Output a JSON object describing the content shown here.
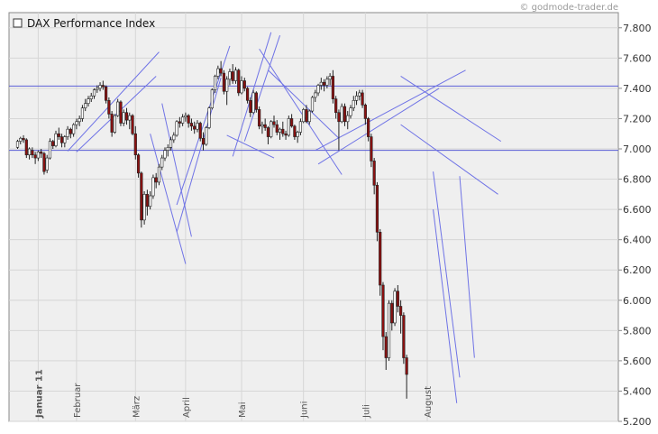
{
  "chart_data": {
    "type": "candlestick",
    "title": "DAX Performance Index",
    "watermark": "© godmode-trader.de",
    "ylim": [
      5200,
      7900
    ],
    "y_ticks": [
      {
        "value": 5200,
        "label": "5.200"
      },
      {
        "value": 5400,
        "label": "5.400"
      },
      {
        "value": 5600,
        "label": "5.600"
      },
      {
        "value": 5800,
        "label": "5.800"
      },
      {
        "value": 6000,
        "label": "6.000"
      },
      {
        "value": 6200,
        "label": "6.200"
      },
      {
        "value": 6400,
        "label": "6.400"
      },
      {
        "value": 6600,
        "label": "6.600"
      },
      {
        "value": 6800,
        "label": "6.800"
      },
      {
        "value": 7000,
        "label": "7.000"
      },
      {
        "value": 7200,
        "label": "7.200"
      },
      {
        "value": 7400,
        "label": "7.400"
      },
      {
        "value": 7600,
        "label": "7.600"
      },
      {
        "value": 7800,
        "label": "7.800"
      }
    ],
    "month_labels": [
      {
        "label": "Januar 11",
        "index": 7,
        "bold": true
      },
      {
        "label": "Februar",
        "index": 20,
        "bold": false
      },
      {
        "label": "März",
        "index": 40,
        "bold": false
      },
      {
        "label": "April",
        "index": 57,
        "bold": false
      },
      {
        "label": "Mai",
        "index": 76,
        "bold": false
      },
      {
        "label": "Juni",
        "index": 97,
        "bold": false
      },
      {
        "label": "Juli",
        "index": 118,
        "bold": false
      },
      {
        "label": "August",
        "index": 139,
        "bold": false
      }
    ],
    "horizontal_levels": [
      7415,
      6990
    ],
    "trend_lines": [
      [
        [
          17,
          6985
        ],
        [
          48,
          7640
        ]
      ],
      [
        [
          20,
          6980
        ],
        [
          47,
          7480
        ]
      ],
      [
        [
          49,
          7300
        ],
        [
          59,
          6420
        ]
      ],
      [
        [
          45,
          7100
        ],
        [
          57,
          6240
        ]
      ],
      [
        [
          54,
          6450
        ],
        [
          69,
          7470
        ]
      ],
      [
        [
          54,
          6630
        ],
        [
          72,
          7680
        ]
      ],
      [
        [
          71,
          7090
        ],
        [
          87,
          6940
        ]
      ],
      [
        [
          73,
          6950
        ],
        [
          86,
          7770
        ]
      ],
      [
        [
          77,
          7050
        ],
        [
          89,
          7750
        ]
      ],
      [
        [
          85,
          7520
        ],
        [
          109,
          7070
        ]
      ],
      [
        [
          82,
          7660
        ],
        [
          110,
          6830
        ]
      ],
      [
        [
          102,
          6900
        ],
        [
          143,
          7400
        ]
      ],
      [
        [
          101,
          6990
        ],
        [
          152,
          7520
        ]
      ],
      [
        [
          130,
          7480
        ],
        [
          164,
          7050
        ]
      ],
      [
        [
          130,
          7160
        ],
        [
          163,
          6700
        ]
      ],
      [
        [
          141,
          6850
        ],
        [
          150,
          5490
        ]
      ],
      [
        [
          141,
          6600
        ],
        [
          149,
          5320
        ]
      ],
      [
        [
          150,
          6820
        ],
        [
          155,
          5620
        ]
      ]
    ],
    "candles": [
      [
        7010,
        7060,
        7000,
        7050
      ],
      [
        7050,
        7080,
        7030,
        7070
      ],
      [
        7070,
        7090,
        7040,
        7060
      ],
      [
        7060,
        7070,
        6940,
        6960
      ],
      [
        6960,
        7010,
        6930,
        7000
      ],
      [
        6990,
        7010,
        6940,
        6960
      ],
      [
        6960,
        6980,
        6900,
        6940
      ],
      [
        6940,
        6990,
        6920,
        6980
      ],
      [
        6980,
        7000,
        6940,
        6970
      ],
      [
        6970,
        6980,
        6830,
        6850
      ],
      [
        6860,
        6960,
        6840,
        6940
      ],
      [
        6940,
        7070,
        6930,
        7050
      ],
      [
        7050,
        7060,
        7000,
        7020
      ],
      [
        7020,
        7120,
        7010,
        7100
      ],
      [
        7100,
        7140,
        7060,
        7080
      ],
      [
        7080,
        7100,
        7010,
        7040
      ],
      [
        7040,
        7090,
        7010,
        7080
      ],
      [
        7080,
        7150,
        7060,
        7130
      ],
      [
        7130,
        7140,
        7070,
        7100
      ],
      [
        7100,
        7170,
        7080,
        7160
      ],
      [
        7160,
        7200,
        7130,
        7180
      ],
      [
        7180,
        7220,
        7150,
        7200
      ],
      [
        7200,
        7290,
        7180,
        7270
      ],
      [
        7270,
        7330,
        7250,
        7300
      ],
      [
        7300,
        7350,
        7280,
        7330
      ],
      [
        7330,
        7370,
        7310,
        7350
      ],
      [
        7350,
        7400,
        7330,
        7390
      ],
      [
        7390,
        7420,
        7370,
        7400
      ],
      [
        7400,
        7440,
        7380,
        7420
      ],
      [
        7420,
        7450,
        7390,
        7410
      ],
      [
        7410,
        7420,
        7300,
        7320
      ],
      [
        7320,
        7340,
        7200,
        7230
      ],
      [
        7230,
        7250,
        7080,
        7110
      ],
      [
        7110,
        7230,
        7100,
        7220
      ],
      [
        7220,
        7330,
        7210,
        7310
      ],
      [
        7310,
        7320,
        7150,
        7170
      ],
      [
        7170,
        7260,
        7150,
        7240
      ],
      [
        7240,
        7270,
        7160,
        7190
      ],
      [
        7190,
        7240,
        7130,
        7220
      ],
      [
        7220,
        7230,
        7090,
        7100
      ],
      [
        7100,
        7150,
        6930,
        6960
      ],
      [
        6960,
        6970,
        6810,
        6840
      ],
      [
        6840,
        6850,
        6480,
        6530
      ],
      [
        6530,
        6720,
        6500,
        6700
      ],
      [
        6700,
        6730,
        6560,
        6620
      ],
      [
        6620,
        6720,
        6600,
        6690
      ],
      [
        6690,
        6830,
        6670,
        6810
      ],
      [
        6810,
        6840,
        6740,
        6780
      ],
      [
        6780,
        6900,
        6760,
        6880
      ],
      [
        6880,
        6960,
        6860,
        6940
      ],
      [
        6940,
        7010,
        6920,
        6990
      ],
      [
        6990,
        7030,
        6950,
        7010
      ],
      [
        7010,
        7080,
        6990,
        7060
      ],
      [
        7060,
        7110,
        7040,
        7090
      ],
      [
        7090,
        7190,
        7080,
        7180
      ],
      [
        7180,
        7210,
        7140,
        7170
      ],
      [
        7170,
        7230,
        7150,
        7210
      ],
      [
        7210,
        7240,
        7180,
        7220
      ],
      [
        7220,
        7230,
        7140,
        7170
      ],
      [
        7170,
        7200,
        7120,
        7150
      ],
      [
        7150,
        7180,
        7100,
        7130
      ],
      [
        7130,
        7190,
        7110,
        7170
      ],
      [
        7170,
        7180,
        7050,
        7070
      ],
      [
        7070,
        7110,
        6990,
        7030
      ],
      [
        7030,
        7150,
        7020,
        7140
      ],
      [
        7140,
        7280,
        7130,
        7270
      ],
      [
        7270,
        7400,
        7260,
        7390
      ],
      [
        7390,
        7490,
        7370,
        7480
      ],
      [
        7480,
        7550,
        7460,
        7530
      ],
      [
        7530,
        7580,
        7480,
        7500
      ],
      [
        7500,
        7520,
        7360,
        7380
      ],
      [
        7380,
        7480,
        7290,
        7460
      ],
      [
        7460,
        7530,
        7420,
        7510
      ],
      [
        7510,
        7560,
        7430,
        7450
      ],
      [
        7450,
        7540,
        7430,
        7520
      ],
      [
        7520,
        7530,
        7350,
        7370
      ],
      [
        7370,
        7480,
        7360,
        7450
      ],
      [
        7450,
        7470,
        7380,
        7400
      ],
      [
        7400,
        7410,
        7300,
        7320
      ],
      [
        7320,
        7340,
        7210,
        7240
      ],
      [
        7240,
        7390,
        7230,
        7370
      ],
      [
        7370,
        7380,
        7240,
        7260
      ],
      [
        7260,
        7280,
        7130,
        7150
      ],
      [
        7150,
        7180,
        7100,
        7160
      ],
      [
        7160,
        7200,
        7120,
        7140
      ],
      [
        7140,
        7150,
        7030,
        7080
      ],
      [
        7080,
        7190,
        7070,
        7180
      ],
      [
        7180,
        7220,
        7140,
        7160
      ],
      [
        7160,
        7190,
        7090,
        7110
      ],
      [
        7110,
        7140,
        7060,
        7130
      ],
      [
        7130,
        7180,
        7080,
        7100
      ],
      [
        7100,
        7120,
        7060,
        7090
      ],
      [
        7090,
        7220,
        7080,
        7200
      ],
      [
        7200,
        7230,
        7140,
        7150
      ],
      [
        7150,
        7160,
        7060,
        7080
      ],
      [
        7080,
        7120,
        7040,
        7110
      ],
      [
        7110,
        7200,
        7090,
        7180
      ],
      [
        7180,
        7270,
        7170,
        7260
      ],
      [
        7260,
        7290,
        7170,
        7180
      ],
      [
        7180,
        7260,
        7160,
        7250
      ],
      [
        7250,
        7350,
        7240,
        7340
      ],
      [
        7340,
        7390,
        7310,
        7370
      ],
      [
        7370,
        7430,
        7350,
        7420
      ],
      [
        7420,
        7470,
        7390,
        7440
      ],
      [
        7440,
        7460,
        7380,
        7420
      ],
      [
        7420,
        7480,
        7400,
        7460
      ],
      [
        7460,
        7500,
        7420,
        7480
      ],
      [
        7480,
        7520,
        7300,
        7330
      ],
      [
        7330,
        7350,
        7200,
        7240
      ],
      [
        7240,
        7260,
        6990,
        7180
      ],
      [
        7180,
        7300,
        7170,
        7280
      ],
      [
        7280,
        7300,
        7150,
        7180
      ],
      [
        7180,
        7250,
        7130,
        7220
      ],
      [
        7220,
        7290,
        7200,
        7270
      ],
      [
        7270,
        7350,
        7250,
        7320
      ],
      [
        7320,
        7380,
        7290,
        7350
      ],
      [
        7350,
        7390,
        7320,
        7370
      ],
      [
        7370,
        7390,
        7270,
        7290
      ],
      [
        7290,
        7300,
        7160,
        7200
      ],
      [
        7200,
        7210,
        7050,
        7080
      ],
      [
        7080,
        7100,
        6880,
        6920
      ],
      [
        6920,
        6940,
        6700,
        6760
      ],
      [
        6760,
        6780,
        6390,
        6450
      ],
      [
        6450,
        6470,
        6030,
        6100
      ],
      [
        6100,
        6120,
        5670,
        5760
      ],
      [
        5760,
        5790,
        5540,
        5620
      ],
      [
        5620,
        6000,
        5600,
        5980
      ],
      [
        5980,
        6000,
        5800,
        5850
      ],
      [
        5850,
        6080,
        5830,
        6060
      ],
      [
        6060,
        6100,
        5920,
        5960
      ],
      [
        5960,
        6000,
        5780,
        5900
      ],
      [
        5900,
        5920,
        5580,
        5620
      ],
      [
        5620,
        5640,
        5350,
        5510
      ]
    ]
  }
}
